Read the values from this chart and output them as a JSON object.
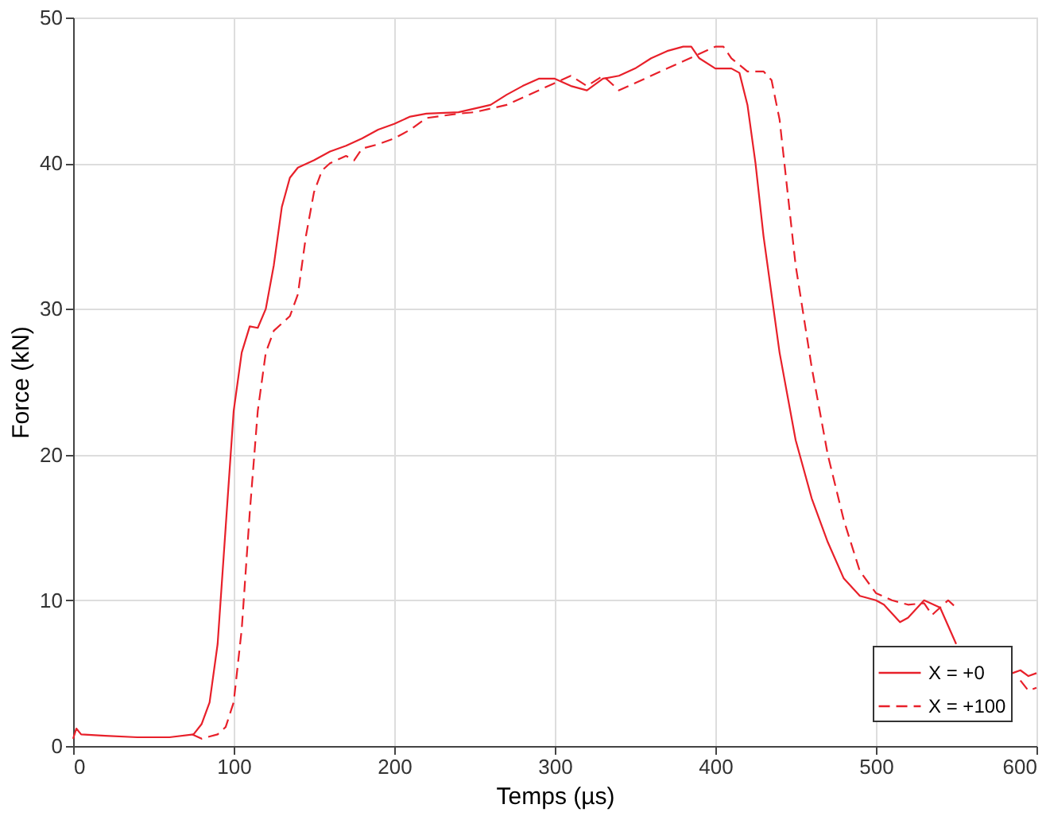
{
  "chart_data": {
    "type": "line",
    "xlabel": "Temps (µs)",
    "ylabel": "Force (kN)",
    "xlim": [
      0,
      600
    ],
    "ylim": [
      0,
      50
    ],
    "xticks": [
      0,
      100,
      200,
      300,
      400,
      500,
      600
    ],
    "yticks": [
      0,
      10,
      20,
      30,
      40,
      50
    ],
    "grid": true,
    "legend": "bottom right",
    "marker": "none",
    "series": [
      {
        "name": "X = +0",
        "color": "#e8202a",
        "line_style": "solid",
        "x": [
          0,
          2,
          5,
          20,
          40,
          60,
          75,
          80,
          85,
          90,
          95,
          100,
          105,
          110,
          115,
          120,
          125,
          130,
          135,
          140,
          150,
          160,
          170,
          180,
          190,
          200,
          210,
          220,
          240,
          260,
          270,
          280,
          290,
          300,
          310,
          320,
          330,
          340,
          350,
          360,
          370,
          380,
          385,
          390,
          400,
          410,
          415,
          420,
          425,
          430,
          440,
          450,
          460,
          470,
          480,
          490,
          500,
          505,
          515,
          520,
          530,
          540,
          550,
          555,
          570,
          585,
          590,
          595,
          600
        ],
        "values": [
          0.5,
          1.2,
          0.8,
          0.7,
          0.6,
          0.6,
          0.8,
          1.5,
          3,
          7,
          15,
          23,
          27,
          28.8,
          28.7,
          30,
          33,
          37,
          39,
          39.7,
          40.2,
          40.8,
          41.2,
          41.7,
          42.3,
          42.7,
          43.2,
          43.4,
          43.5,
          44,
          44.7,
          45.3,
          45.8,
          45.8,
          45.3,
          45,
          45.8,
          46,
          46.5,
          47.2,
          47.7,
          48,
          48,
          47.2,
          46.5,
          46.5,
          46.2,
          44,
          40,
          35,
          27,
          21,
          17,
          14,
          11.5,
          10.3,
          10,
          9.7,
          8.5,
          8.8,
          10,
          9.5,
          7,
          null,
          null,
          5,
          5.2,
          4.8,
          5
        ]
      },
      {
        "name": "X = +100",
        "color": "#e8202a",
        "line_style": "dashed",
        "x": [
          74,
          80,
          90,
          95,
          100,
          105,
          110,
          115,
          120,
          125,
          130,
          135,
          140,
          145,
          150,
          155,
          160,
          170,
          175,
          180,
          190,
          200,
          210,
          220,
          240,
          250,
          270,
          280,
          300,
          310,
          320,
          330,
          340,
          350,
          360,
          370,
          380,
          390,
          400,
          405,
          410,
          420,
          430,
          435,
          440,
          445,
          450,
          460,
          470,
          480,
          490,
          500,
          510,
          520,
          530,
          535,
          545,
          550,
          555,
          570,
          590,
          595,
          600
        ],
        "values": [
          0.8,
          0.5,
          0.8,
          1.3,
          3,
          8,
          16,
          23,
          27,
          28.5,
          29,
          29.5,
          31,
          35,
          38,
          39.5,
          40,
          40.5,
          40.2,
          41,
          41.3,
          41.7,
          42.3,
          43.1,
          43.4,
          43.5,
          44,
          44.5,
          45.5,
          46,
          45.3,
          46,
          45,
          45.5,
          46,
          46.5,
          47,
          47.5,
          48,
          48,
          47.2,
          46.3,
          46.3,
          45.7,
          43,
          38,
          33,
          26,
          20,
          15.5,
          12,
          10.5,
          10,
          9.7,
          9.8,
          9,
          10,
          9.5,
          null,
          null,
          4.5,
          3.8,
          4
        ]
      }
    ]
  }
}
